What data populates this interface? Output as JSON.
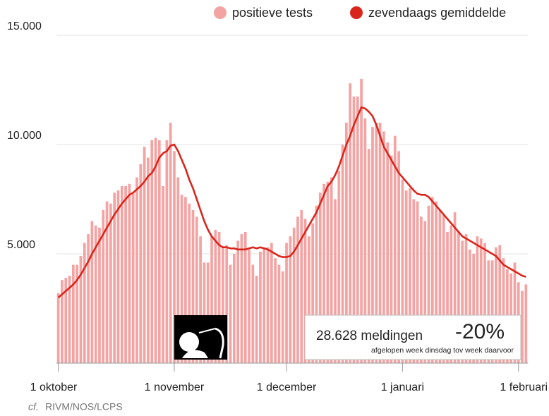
{
  "chart_data": {
    "type": "bar",
    "categories": [
      "1 oktober",
      null,
      null,
      null,
      null,
      null,
      null,
      null,
      null,
      null,
      null,
      null,
      null,
      null,
      null,
      null,
      null,
      null,
      null,
      null,
      null,
      null,
      null,
      null,
      null,
      null,
      null,
      null,
      null,
      null,
      null,
      "1 november",
      null,
      null,
      null,
      null,
      null,
      null,
      null,
      null,
      null,
      null,
      null,
      null,
      null,
      null,
      null,
      null,
      null,
      null,
      null,
      null,
      null,
      null,
      null,
      null,
      null,
      null,
      null,
      null,
      null,
      "1 december",
      null,
      null,
      null,
      null,
      null,
      null,
      null,
      null,
      null,
      null,
      null,
      null,
      null,
      null,
      null,
      null,
      null,
      null,
      null,
      null,
      null,
      null,
      null,
      null,
      null,
      null,
      null,
      null,
      null,
      null,
      "1 januari",
      null,
      null,
      null,
      null,
      null,
      null,
      null,
      null,
      null,
      null,
      null,
      null,
      null,
      null,
      null,
      null,
      null,
      null,
      null,
      null,
      null,
      null,
      null,
      null,
      null,
      null,
      null,
      null,
      null,
      null,
      "1 februari",
      null,
      null
    ],
    "series": [
      {
        "name": "positieve tests",
        "color": "#f4a3a3",
        "values": [
          3200,
          3800,
          3900,
          4000,
          4500,
          4500,
          4900,
          5500,
          5900,
          6500,
          6300,
          6200,
          7000,
          7400,
          7300,
          7800,
          7900,
          8100,
          8100,
          8200,
          7800,
          8500,
          9100,
          9900,
          9400,
          10200,
          10300,
          10200,
          8100,
          10200,
          11000,
          9700,
          8500,
          7700,
          7600,
          7300,
          7000,
          6700,
          5800,
          4600,
          4600,
          5800,
          6100,
          6000,
          5300,
          5400,
          4500,
          5000,
          5600,
          5900,
          6000,
          5200,
          4500,
          4000,
          5100,
          5300,
          5300,
          5500,
          4800,
          4500,
          4200,
          5500,
          5800,
          6200,
          6700,
          7000,
          6600,
          5800,
          6400,
          7200,
          7800,
          8200,
          8300,
          8500,
          7500,
          8800,
          10000,
          11000,
          12800,
          12200,
          12200,
          13000,
          11200,
          9800,
          10800,
          11000,
          11000,
          10600,
          10100,
          9500,
          10400,
          9700,
          8400,
          7900,
          8000,
          7500,
          7400,
          6700,
          6500,
          7200,
          7600,
          7400,
          7000,
          6800,
          6000,
          6300,
          6900,
          6000,
          5600,
          5900,
          5200,
          5000,
          5800,
          5700,
          5500,
          4700,
          4700,
          5300,
          5400,
          4800,
          4300,
          4100,
          4600,
          3700,
          3300,
          3600
        ]
      },
      {
        "name": "zevendaags gemiddelde",
        "color": "#d9261c",
        "type": "line",
        "values": [
          3000,
          3150,
          3300,
          3450,
          3600,
          3800,
          4050,
          4350,
          4650,
          5000,
          5300,
          5600,
          5900,
          6200,
          6500,
          6800,
          7050,
          7300,
          7500,
          7700,
          7800,
          7950,
          8100,
          8300,
          8550,
          8700,
          9000,
          9400,
          9600,
          9700,
          9950,
          10000,
          9700,
          9300,
          8900,
          8400,
          8000,
          7500,
          7000,
          6500,
          6100,
          5800,
          5600,
          5400,
          5300,
          5300,
          5250,
          5250,
          5200,
          5200,
          5200,
          5250,
          5300,
          5250,
          5300,
          5250,
          5200,
          5100,
          5000,
          4900,
          4850,
          4850,
          4900,
          5100,
          5400,
          5700,
          6000,
          6300,
          6600,
          6900,
          7300,
          7700,
          8100,
          8300,
          8600,
          9000,
          9500,
          10000,
          10400,
          10900,
          11300,
          11700,
          11650,
          11500,
          11300,
          10900,
          10400,
          9900,
          9600,
          9300,
          9000,
          8700,
          8500,
          8300,
          8100,
          7900,
          7750,
          7700,
          7700,
          7600,
          7400,
          7200,
          7000,
          6800,
          6600,
          6400,
          6200,
          6000,
          5800,
          5700,
          5600,
          5500,
          5400,
          5300,
          5200,
          5100,
          5000,
          4900,
          4700,
          4500,
          4400,
          4300,
          4200,
          4100,
          4000,
          3950
        ]
      }
    ],
    "ylim": [
      0,
      15000
    ],
    "yticks": [
      {
        "value": 5000,
        "label": "5.000"
      },
      {
        "value": 10000,
        "label": "10.000"
      },
      {
        "value": 15000,
        "label": "15.000"
      }
    ],
    "grid": true,
    "legend": "top-right",
    "annotation": {
      "count": "28.628 meldingen",
      "change": "-20%",
      "note": "afgelopen week dinsdag tov week daarvoor"
    },
    "source": {
      "prefix": "cf.",
      "text": "RIVM/NOS/LCPS"
    }
  }
}
